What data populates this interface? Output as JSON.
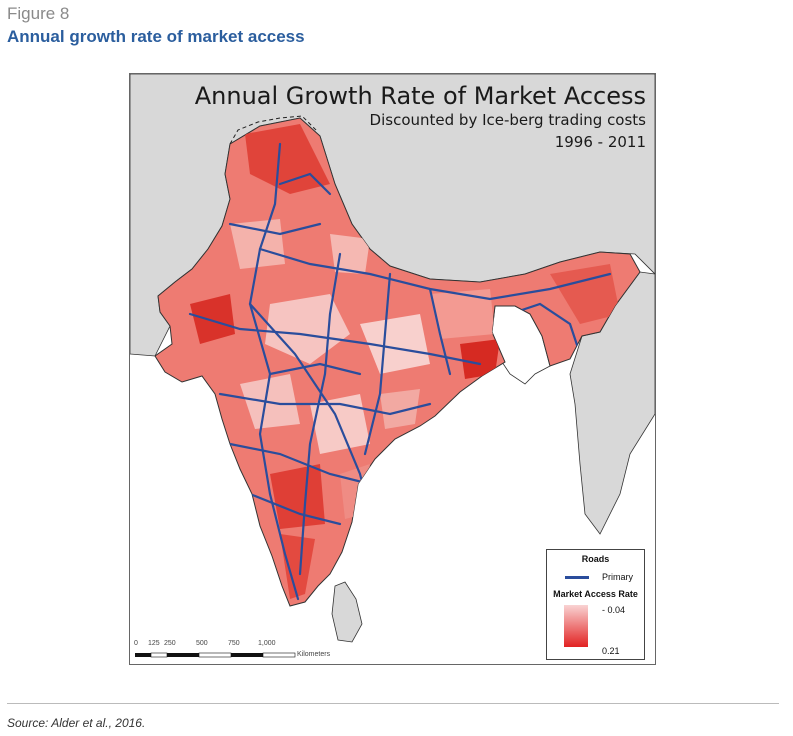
{
  "figure": {
    "label": "Figure 8",
    "title": "Annual growth rate of market access"
  },
  "map": {
    "title": "Annual Growth Rate of Market Access",
    "subtitle": "Discounted by Ice-berg trading costs",
    "period": "1996 - 2011",
    "legend": {
      "roads_heading": "Roads",
      "roads_item": "Primary",
      "rate_heading": "Market Access Rate",
      "rate_min": "- 0.04",
      "rate_max": "0.21"
    },
    "scale_bar": {
      "ticks": [
        "0",
        "125",
        "250",
        "500",
        "750",
        "1,000"
      ],
      "unit": "Kilometers"
    },
    "colors": {
      "low": "#f9d3d3",
      "high": "#e22222",
      "road": "#2a4d9c",
      "neighbor": "#d8d8d8"
    }
  },
  "source": "Source: Alder et al., 2016."
}
